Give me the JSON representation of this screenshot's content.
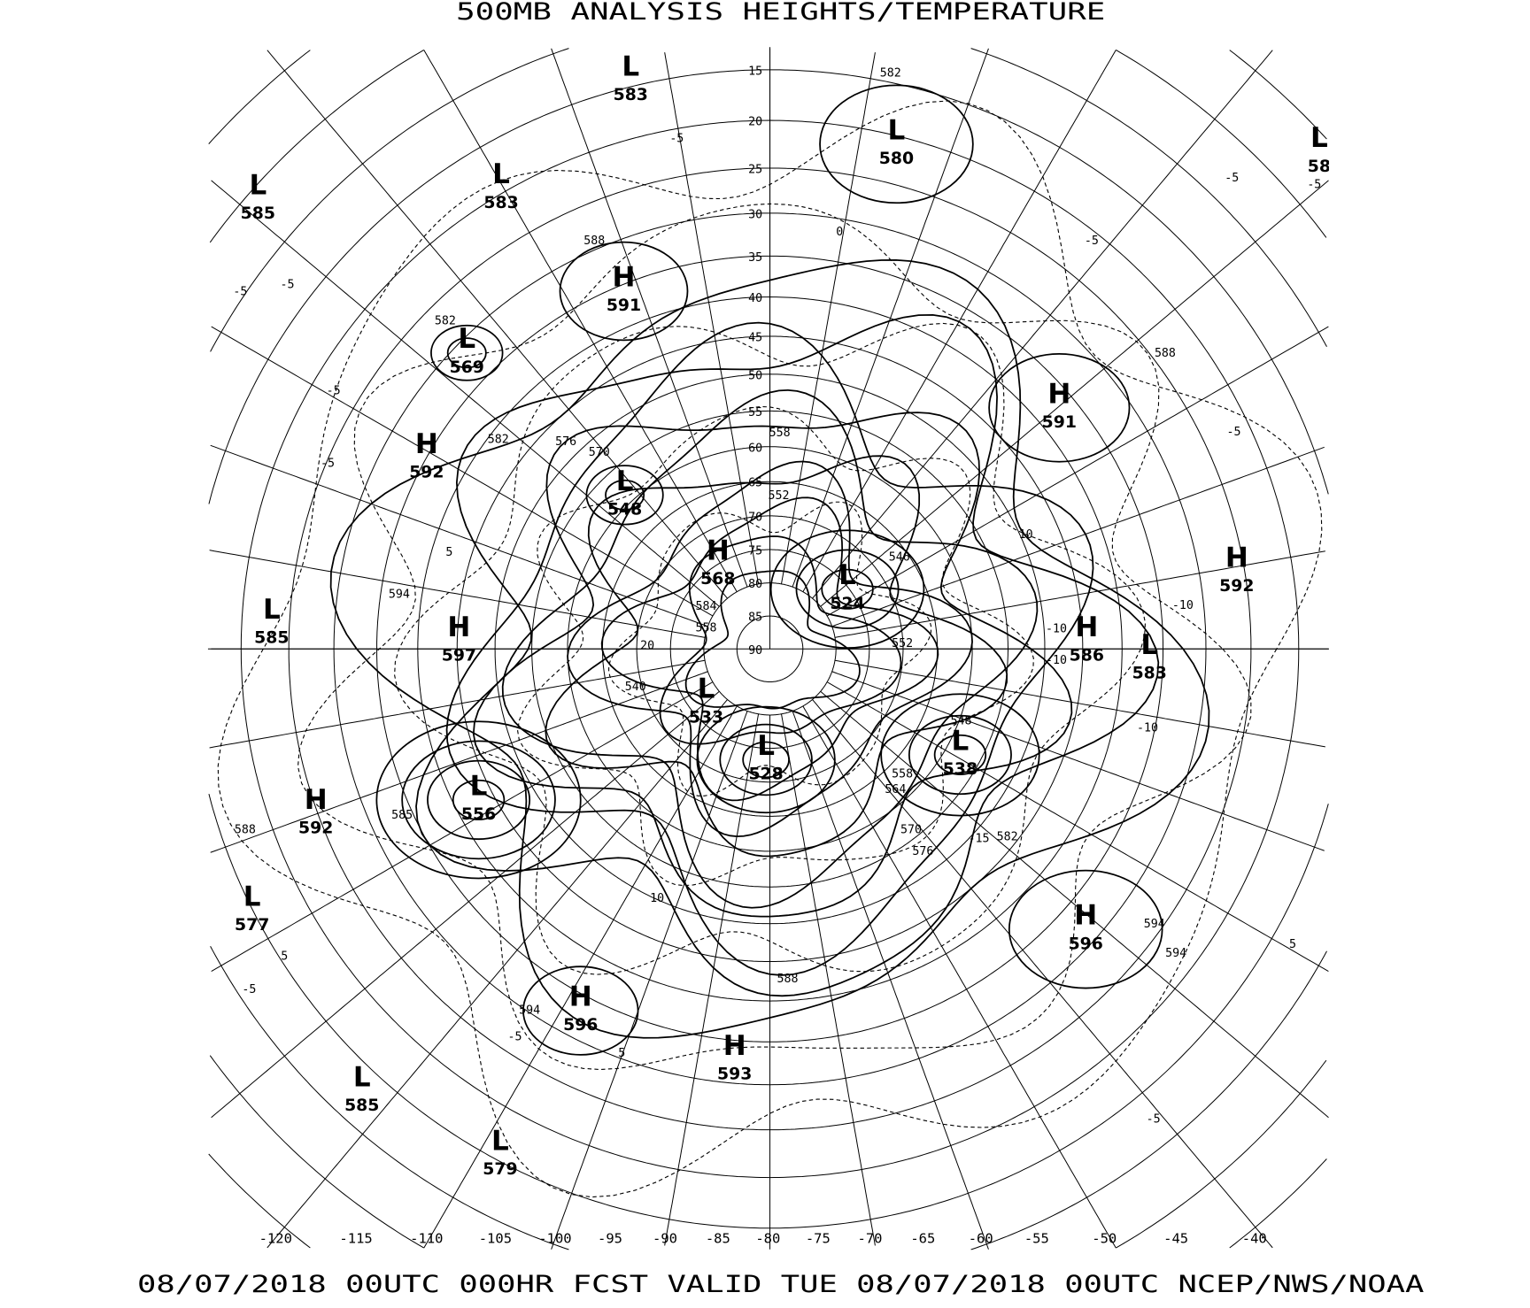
{
  "title": "500MB ANALYSIS  HEIGHTS/TEMPERATURE",
  "footer": "08/07/2018 00UTC 000HR FCST VALID TUE 08/07/2018 00UTC  NCEP/NWS/NOAA",
  "map": {
    "projection": "polar stereographic",
    "colors": {
      "lines": "#000000",
      "background": "#ffffff"
    },
    "latitude_labels": [
      "15",
      "20",
      "25",
      "30",
      "35",
      "40",
      "45",
      "50",
      "55",
      "60",
      "65",
      "70",
      "75",
      "80",
      "85",
      "90"
    ],
    "longitude_labels": [
      "-120",
      "-115",
      "-110",
      "-105",
      "-100",
      "-95",
      "-90",
      "-85",
      "-80",
      "-75",
      "-70",
      "-65",
      "-60",
      "-55",
      "-50",
      "-45",
      "-40"
    ],
    "pressure_centers": [
      {
        "type": "L",
        "value": "583"
      },
      {
        "type": "L",
        "value": "580"
      },
      {
        "type": "L",
        "value": "58"
      },
      {
        "type": "L",
        "value": "585"
      },
      {
        "type": "L",
        "value": "583"
      },
      {
        "type": "H",
        "value": "591"
      },
      {
        "type": "L",
        "value": "569"
      },
      {
        "type": "H",
        "value": "592"
      },
      {
        "type": "L",
        "value": "548"
      },
      {
        "type": "H",
        "value": "591"
      },
      {
        "type": "H",
        "value": "568"
      },
      {
        "type": "L",
        "value": "524"
      },
      {
        "type": "L",
        "value": "585"
      },
      {
        "type": "H",
        "value": "597"
      },
      {
        "type": "H",
        "value": "592"
      },
      {
        "type": "H",
        "value": "586"
      },
      {
        "type": "L",
        "value": "583"
      },
      {
        "type": "L",
        "value": "533"
      },
      {
        "type": "L",
        "value": "538"
      },
      {
        "type": "L",
        "value": "528"
      },
      {
        "type": "L",
        "value": "556"
      },
      {
        "type": "H",
        "value": "592"
      },
      {
        "type": "L",
        "value": "577"
      },
      {
        "type": "H",
        "value": "596"
      },
      {
        "type": "H",
        "value": "596"
      },
      {
        "type": "H",
        "value": "593"
      },
      {
        "type": "L",
        "value": "585"
      },
      {
        "type": "L",
        "value": "579"
      }
    ],
    "height_contour_labels": [
      "582",
      "588",
      "582",
      "582",
      "576",
      "570",
      "558",
      "552",
      "594",
      "584",
      "558",
      "588",
      "585",
      "594",
      "588",
      "558",
      "564",
      "570",
      "576",
      "582",
      "594",
      "594",
      "588",
      "546",
      "548",
      "552",
      "540"
    ],
    "temperature_contour_labels": [
      "-5",
      "-5",
      "-5",
      "-5",
      "-5",
      "-5",
      "-5",
      "0",
      "-5",
      "-10",
      "-10",
      "-10",
      "-10",
      "-5",
      "5",
      "5",
      "-5",
      "-5",
      "5",
      "5",
      "10",
      "20",
      "10",
      "-15",
      "-5"
    ]
  }
}
